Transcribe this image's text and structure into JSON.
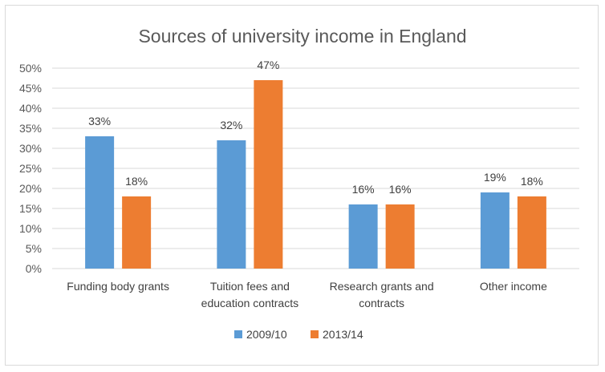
{
  "chart_data": {
    "type": "bar",
    "title": "Sources of university income in England",
    "categories": [
      [
        "Funding body grants"
      ],
      [
        "Tuition fees and",
        "education contracts"
      ],
      [
        "Research grants and",
        "contracts"
      ],
      [
        "Other income"
      ]
    ],
    "series": [
      {
        "name": "2009/10",
        "color": "#5B9BD5",
        "values": [
          33,
          32,
          16,
          19
        ],
        "labels": [
          "33%",
          "32%",
          "16%",
          "19%"
        ]
      },
      {
        "name": "2013/14",
        "color": "#ED7D31",
        "values": [
          18,
          47,
          16,
          18
        ],
        "labels": [
          "18%",
          "47%",
          "16%",
          "18%"
        ]
      }
    ],
    "ylim": [
      0,
      50
    ],
    "yticks": [
      "0%",
      "5%",
      "10%",
      "15%",
      "20%",
      "25%",
      "30%",
      "35%",
      "40%",
      "45%",
      "50%"
    ],
    "grid": true,
    "legend_position": "bottom"
  }
}
